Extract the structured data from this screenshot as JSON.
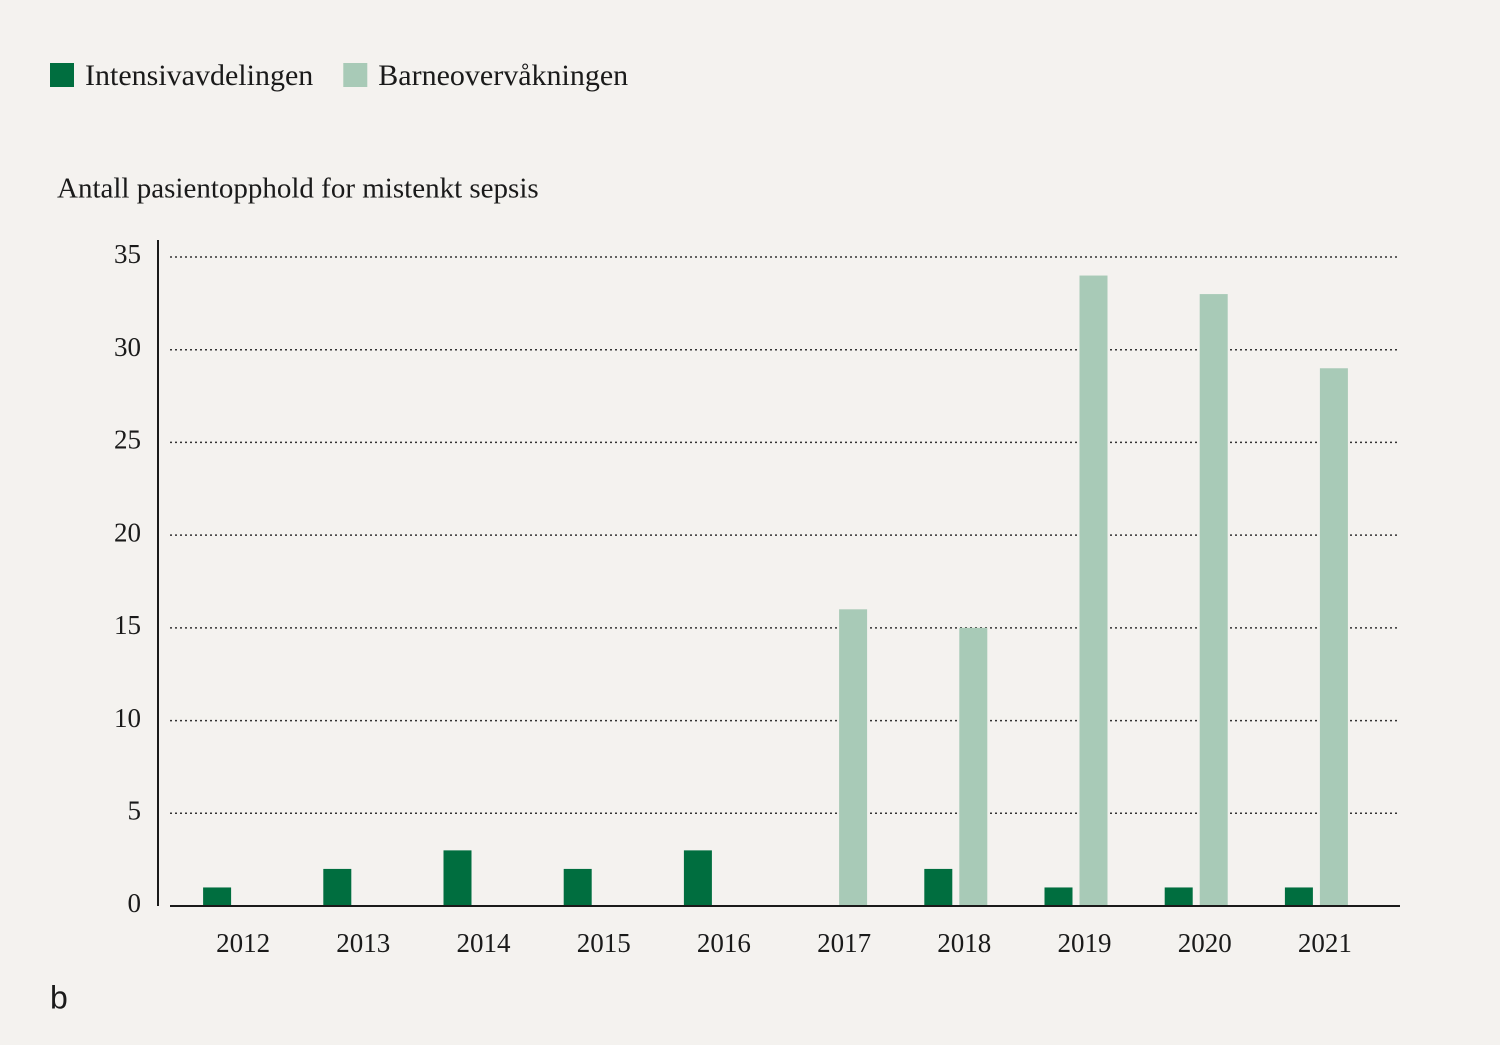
{
  "chart_data": {
    "type": "bar",
    "y_label": "Antall pasientopphold for mistenkt sepsis",
    "panel_label": "b",
    "categories": [
      "2012",
      "2013",
      "2014",
      "2015",
      "2016",
      "2017",
      "2018",
      "2019",
      "2020",
      "2021"
    ],
    "series": [
      {
        "name": "Intensivavdelingen",
        "color": "#006e3f",
        "values": [
          1,
          2,
          3,
          2,
          3,
          0,
          2,
          1,
          1,
          1
        ]
      },
      {
        "name": "Barneovervåkningen",
        "color": "#a8cab7",
        "values": [
          0,
          0,
          0,
          0,
          0,
          16,
          15,
          34,
          33,
          29
        ]
      }
    ],
    "ylim": [
      0,
      35
    ],
    "yticks": [
      0,
      5,
      10,
      15,
      20,
      25,
      30,
      35
    ],
    "grid": true
  }
}
